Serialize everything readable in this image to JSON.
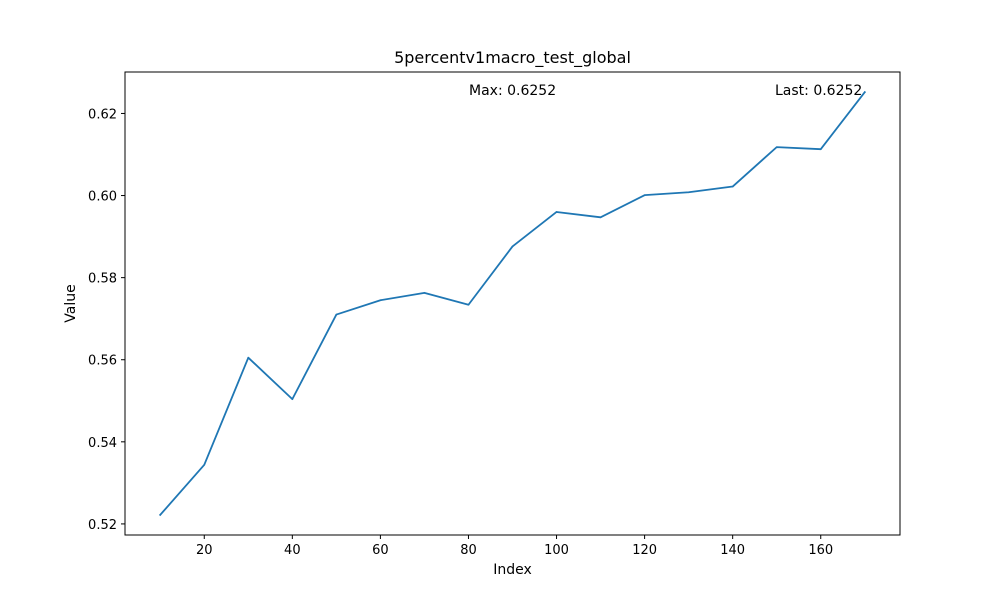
{
  "chart_data": {
    "type": "line",
    "title": "5percentv1macro_test_global",
    "xlabel": "Index",
    "ylabel": "Value",
    "xlim": [
      2.0,
      178.0
    ],
    "ylim": [
      0.5173,
      0.6301
    ],
    "x_ticks": [
      20,
      40,
      60,
      80,
      100,
      120,
      140,
      160
    ],
    "y_ticks": [
      0.52,
      0.54,
      0.56,
      0.58,
      0.6,
      0.62
    ],
    "x_tick_labels": [
      "20",
      "40",
      "60",
      "80",
      "100",
      "120",
      "140",
      "160"
    ],
    "y_tick_labels": [
      "0.52",
      "0.54",
      "0.56",
      "0.58",
      "0.60",
      "0.62"
    ],
    "grid": false,
    "series": [
      {
        "color": "#1f77b4",
        "x": [
          10,
          20,
          30,
          40,
          50,
          60,
          70,
          80,
          90,
          100,
          110,
          120,
          130,
          140,
          150,
          160,
          170
        ],
        "y": [
          0.5222,
          0.5344,
          0.5605,
          0.5504,
          0.571,
          0.5745,
          0.5763,
          0.5734,
          0.5876,
          0.596,
          0.5947,
          0.6001,
          0.6008,
          0.6022,
          0.6118,
          0.6113,
          0.6252
        ]
      }
    ],
    "annotations": {
      "max_text": "Max: 0.6252",
      "last_text": "Last: 0.6252"
    }
  }
}
